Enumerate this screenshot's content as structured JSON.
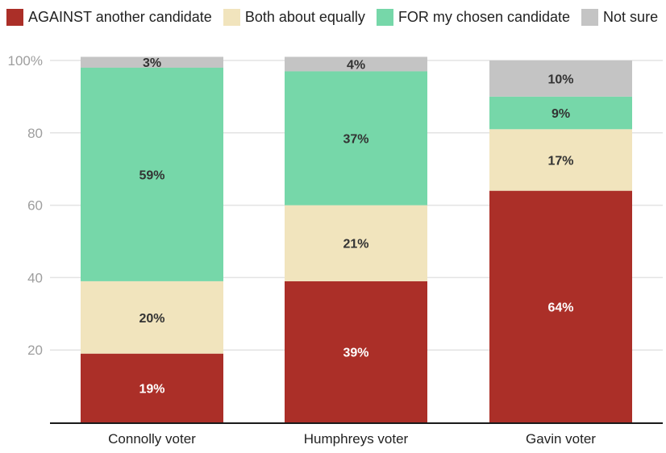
{
  "chart_data": {
    "type": "bar",
    "stacked": true,
    "title": "",
    "xlabel": "",
    "ylabel": "",
    "ylim": [
      0,
      100
    ],
    "yticks": [
      20,
      40,
      60,
      80,
      100
    ],
    "ytick_labels": [
      "20",
      "40",
      "60",
      "80",
      "100%"
    ],
    "grid": true,
    "legend_position": "top-left",
    "categories": [
      "Connolly voter",
      "Humphreys voter",
      "Gavin voter"
    ],
    "series": [
      {
        "name": "AGAINST another candidate",
        "color": "#ab2f28",
        "label_color": "#ffffff",
        "values": [
          19,
          39,
          64
        ]
      },
      {
        "name": "Both about equally",
        "color": "#f1e4bd",
        "label_color": "#333333",
        "values": [
          20,
          21,
          17
        ]
      },
      {
        "name": "FOR my chosen candidate",
        "color": "#76d7a9",
        "label_color": "#333333",
        "values": [
          59,
          37,
          9
        ]
      },
      {
        "name": "Not sure",
        "color": "#c4c4c4",
        "label_color": "#333333",
        "values": [
          3,
          4,
          10
        ]
      }
    ],
    "value_suffix": "%"
  }
}
